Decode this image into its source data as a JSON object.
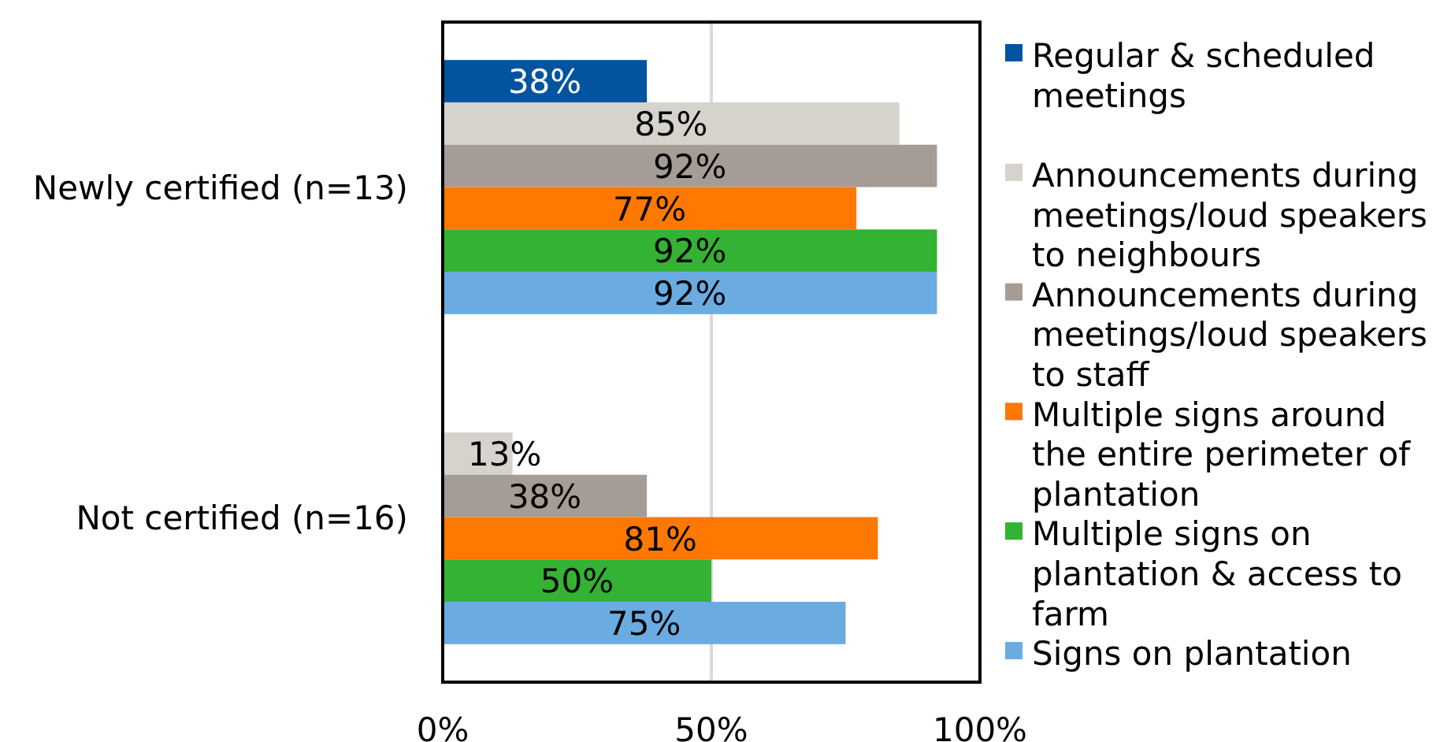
{
  "chart_data": {
    "type": "bar",
    "orientation": "horizontal",
    "categories": [
      "Newly certified (n=13)",
      "Not certified (n=16)"
    ],
    "series": [
      {
        "name": "Regular & scheduled meetings",
        "color": "#0254a0",
        "values": [
          38,
          null
        ],
        "value_labels": [
          "38%",
          null
        ]
      },
      {
        "name": "Announcements during meetings/loud speakers to neighbours",
        "color": "#d5d3cb",
        "values": [
          85,
          13
        ],
        "value_labels": [
          "85%",
          "13%"
        ]
      },
      {
        "name": "Announcements during meetings/loud speakers to staff",
        "color": "#a59c96",
        "values": [
          92,
          38
        ],
        "value_labels": [
          "92%",
          "38%"
        ]
      },
      {
        "name": "Multiple signs around the entire perimeter of plantation",
        "color": "#ff7900",
        "values": [
          77,
          81
        ],
        "value_labels": [
          "77%",
          "81%"
        ]
      },
      {
        "name": "Multiple signs on plantation & access to farm",
        "color": "#34b233",
        "values": [
          92,
          50
        ],
        "value_labels": [
          "92%",
          "50%"
        ]
      },
      {
        "name": "Signs on plantation",
        "color": "#6aace2",
        "values": [
          92,
          75
        ],
        "value_labels": [
          "92%",
          "75%"
        ]
      }
    ],
    "xlim": [
      0,
      100
    ],
    "xticks": [
      {
        "value": 0,
        "label": "0%"
      },
      {
        "value": 50,
        "label": "50%"
      },
      {
        "value": 100,
        "label": "100%"
      }
    ],
    "grid": "x",
    "legend": "right"
  }
}
